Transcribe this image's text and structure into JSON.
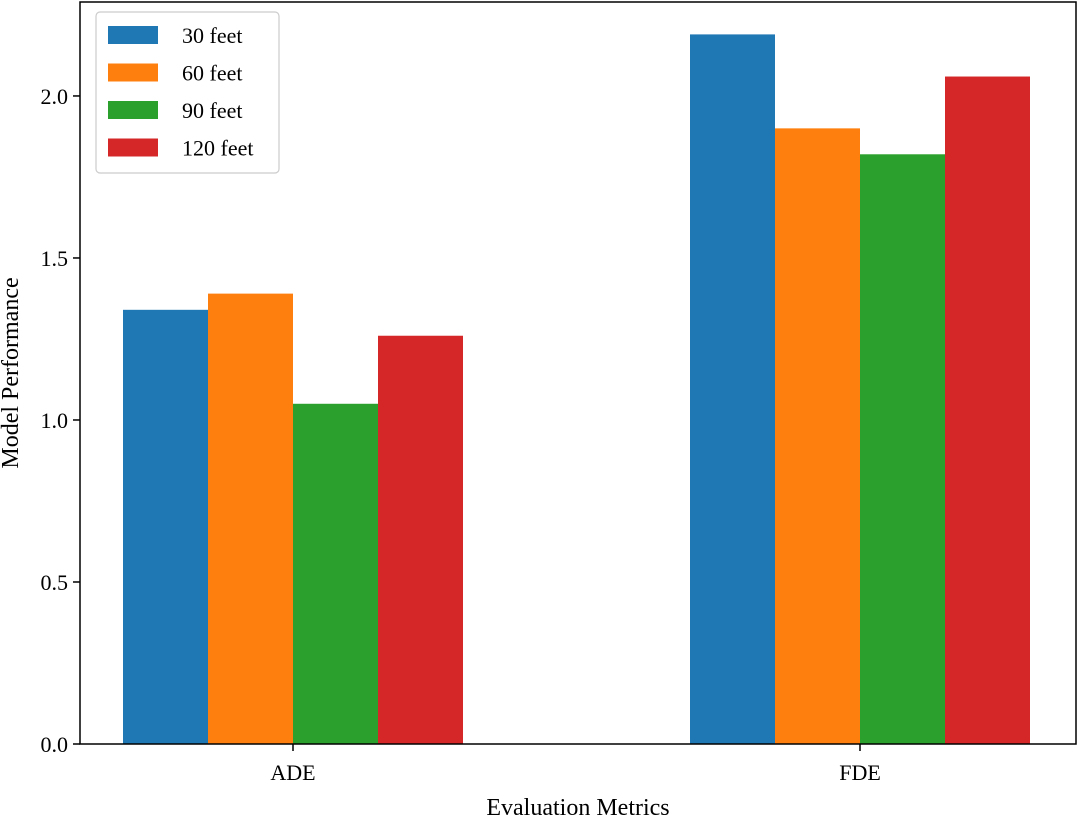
{
  "chart_data": {
    "type": "bar",
    "title": "",
    "xlabel": "Evaluation Metrics",
    "ylabel": "Model Performance",
    "categories": [
      "ADE",
      "FDE"
    ],
    "series": [
      {
        "name": "30 feet",
        "values": [
          1.34,
          2.19
        ],
        "color": "#1f77b4"
      },
      {
        "name": "60 feet",
        "values": [
          1.39,
          1.9
        ],
        "color": "#ff7f0e"
      },
      {
        "name": "90 feet",
        "values": [
          1.05,
          1.82
        ],
        "color": "#2ca02c"
      },
      {
        "name": "120 feet",
        "values": [
          1.26,
          2.06
        ],
        "color": "#d62728"
      }
    ],
    "ylim": [
      0,
      2.29
    ],
    "yticks": [
      0.0,
      0.5,
      1.0,
      1.5,
      2.0
    ],
    "ytick_labels": [
      "0.0",
      "0.5",
      "1.0",
      "1.5",
      "2.0"
    ],
    "grid": false,
    "legend_position": "top-left"
  }
}
